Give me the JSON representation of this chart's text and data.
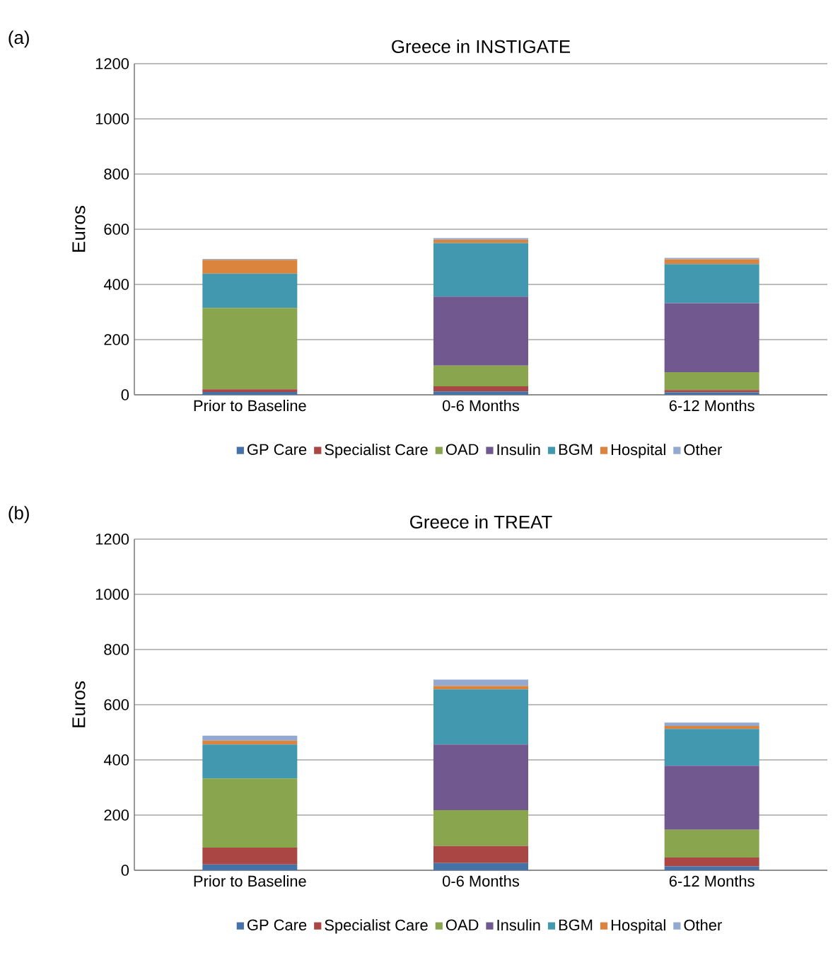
{
  "chart_data": [
    {
      "type": "bar",
      "title": "Greece in INSTIGATE",
      "ylabel": "Euros",
      "annotations": [
        "(a)"
      ],
      "stacked": true,
      "grid": "y",
      "legend": "bottom",
      "categories": [
        "Prior to Baseline",
        "0-6 Months",
        "6-12 Months"
      ],
      "ylim": [
        0,
        1200
      ],
      "yticks": [
        0,
        200,
        400,
        600,
        800,
        1000,
        1200
      ],
      "series": [
        {
          "name": "GP Care",
          "color": "#4572a7",
          "values": [
            10,
            12,
            9
          ]
        },
        {
          "name": "Specialist Care",
          "color": "#aa4643",
          "values": [
            10,
            19,
            8
          ]
        },
        {
          "name": "OAD",
          "color": "#89a54e",
          "values": [
            295,
            75,
            65
          ]
        },
        {
          "name": "Insulin",
          "color": "#71588f",
          "values": [
            0,
            250,
            250
          ]
        },
        {
          "name": "BGM",
          "color": "#4198af",
          "values": [
            124,
            194,
            142
          ]
        },
        {
          "name": "Hospital",
          "color": "#db843d",
          "values": [
            50,
            12,
            17
          ]
        },
        {
          "name": "Other",
          "color": "#93a9cf",
          "values": [
            3,
            6,
            5
          ]
        }
      ]
    },
    {
      "type": "bar",
      "title": "Greece in TREAT",
      "ylabel": "Euros",
      "annotations": [
        "(b)"
      ],
      "stacked": true,
      "grid": "y",
      "legend": "bottom",
      "categories": [
        "Prior to Baseline",
        "0-6 Months",
        "6-12 Months"
      ],
      "ylim": [
        0,
        1200
      ],
      "yticks": [
        0,
        200,
        400,
        600,
        800,
        1000,
        1200
      ],
      "series": [
        {
          "name": "GP Care",
          "color": "#4572a7",
          "values": [
            21,
            26,
            14
          ]
        },
        {
          "name": "Specialist Care",
          "color": "#aa4643",
          "values": [
            61,
            62,
            32
          ]
        },
        {
          "name": "OAD",
          "color": "#89a54e",
          "values": [
            251,
            130,
            101
          ]
        },
        {
          "name": "Insulin",
          "color": "#71588f",
          "values": [
            0,
            238,
            232
          ]
        },
        {
          "name": "BGM",
          "color": "#4198af",
          "values": [
            123,
            200,
            133
          ]
        },
        {
          "name": "Hospital",
          "color": "#db843d",
          "values": [
            14,
            12,
            11
          ]
        },
        {
          "name": "Other",
          "color": "#93a9cf",
          "values": [
            18,
            23,
            12
          ]
        }
      ]
    }
  ]
}
